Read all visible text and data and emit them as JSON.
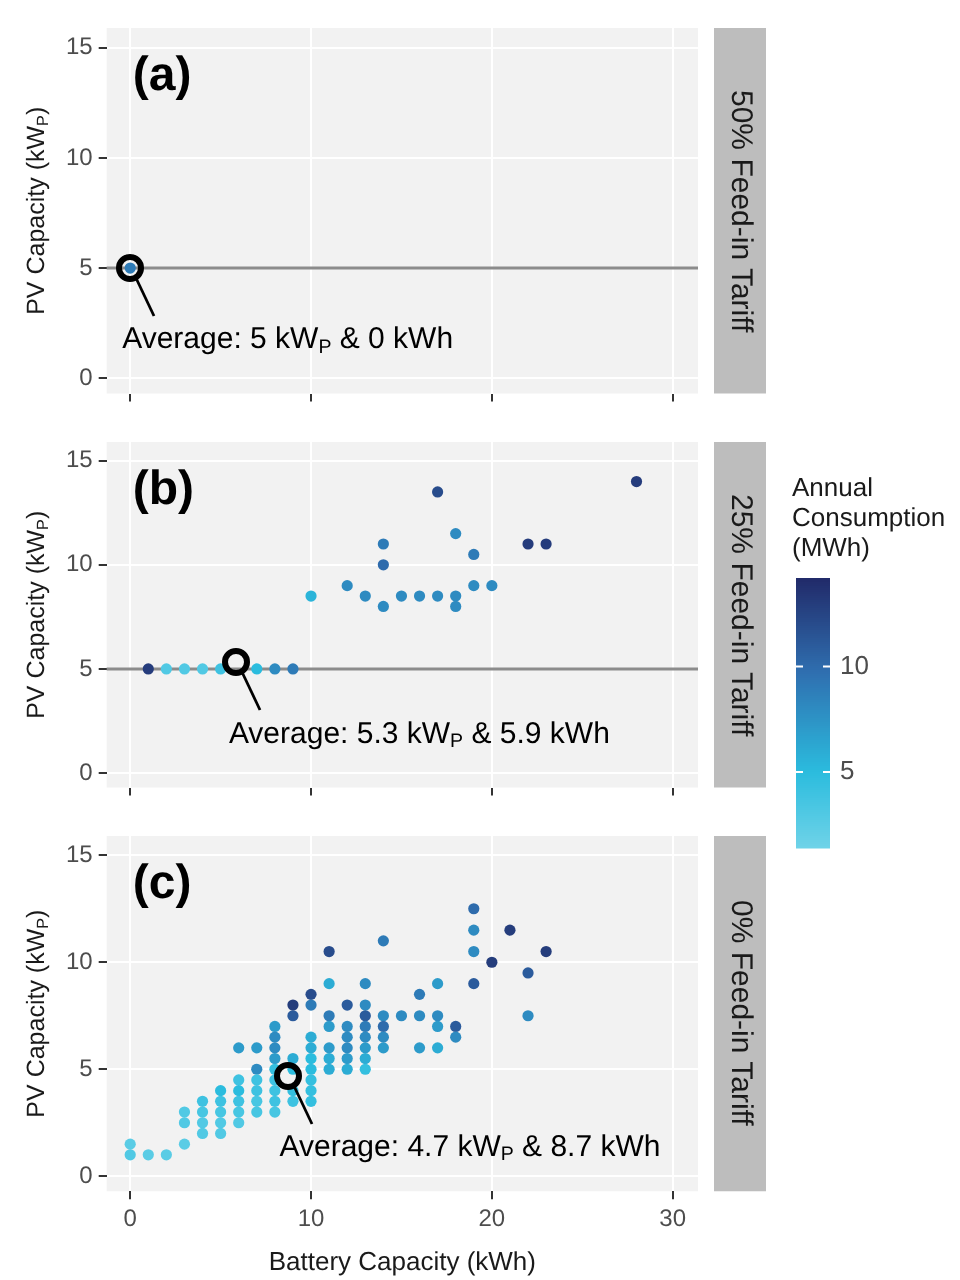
{
  "chart_data": [
    {
      "type": "scatter",
      "title": "(a)",
      "y2label": "50% Feed-in Tariff",
      "ylabel": "PV Capacity (kW$_{P}$)",
      "xlim": [
        -1.3,
        31.4
      ],
      "ylim": [
        -0.7,
        15.9
      ],
      "xticks": [
        0,
        10,
        20,
        30
      ],
      "yticks": [
        0,
        5,
        10,
        15
      ],
      "tick_labels": "y",
      "grid": true,
      "legend": false,
      "marker": "circle",
      "series": [
        {
          "x": [
            0
          ],
          "values": [
            5
          ],
          "colors": [
            "#2e7bb7"
          ]
        }
      ],
      "ref_lines": [
        {
          "axis": "y",
          "value": 5,
          "color": "#8c8c8c"
        }
      ],
      "annotations": [
        {
          "text": "Average: 5 kW$_{P}$ & 0 kWh",
          "x": 0,
          "y": 5
        }
      ]
    },
    {
      "type": "scatter",
      "title": "(b)",
      "y2label": "25% Feed-in Tariff",
      "ylabel": "PV Capacity (kW$_{P}$)",
      "xlim": [
        -1.3,
        31.4
      ],
      "ylim": [
        -0.7,
        15.9
      ],
      "xticks": [
        0,
        10,
        20,
        30
      ],
      "yticks": [
        0,
        5,
        10,
        15
      ],
      "tick_labels": "y",
      "grid": true,
      "legend": false,
      "marker": "circle",
      "clabel": "Annual Consumption (MWh)",
      "clim": [
        1.4,
        14.2
      ],
      "cticks": [
        5,
        10
      ],
      "series": [
        {
          "x": [
            1,
            2,
            3,
            4,
            5,
            6,
            7,
            8,
            9,
            10,
            12,
            13,
            14,
            14,
            14,
            15,
            16,
            17,
            17,
            18,
            18,
            18,
            19,
            19,
            20,
            22,
            23,
            28
          ],
          "values": [
            5,
            5,
            5,
            5,
            5,
            null,
            5,
            5,
            5,
            8.5,
            9,
            8.5,
            11,
            10,
            8,
            8.5,
            8.5,
            13.5,
            8.5,
            11.5,
            8.5,
            8,
            10.5,
            9,
            9,
            11,
            11,
            14
          ],
          "cvalues": [
            13,
            3,
            3,
            3,
            4,
            null,
            5,
            8,
            9,
            5.5,
            8,
            8,
            9,
            10,
            8,
            8,
            8,
            12,
            8,
            8,
            8,
            8,
            9,
            8,
            8,
            13,
            13,
            13
          ]
        }
      ],
      "ref_lines": [
        {
          "axis": "y",
          "value": 5,
          "color": "#8c8c8c"
        }
      ],
      "annotations": [
        {
          "text": "Average: 5.3 kW$_{P}$ & 5.9 kWh",
          "x": 5.9,
          "y": 5.3
        }
      ]
    },
    {
      "type": "scatter",
      "title": "(c)",
      "y2label": "0% Feed-in Tariff",
      "xlabel": "Battery Capacity (kWh)",
      "ylabel": "PV Capacity (kW$_{P}$)",
      "xlim": [
        -1.3,
        31.4
      ],
      "ylim": [
        -0.7,
        15.9
      ],
      "xticks": [
        0,
        10,
        20,
        30
      ],
      "yticks": [
        0,
        5,
        10,
        15
      ],
      "grid": true,
      "legend": false,
      "marker": "circle",
      "series": [
        {
          "x": [
            0,
            0,
            1,
            2,
            3,
            3,
            3,
            4,
            4,
            4,
            4,
            5,
            5,
            5,
            5,
            5,
            6,
            6,
            6,
            6,
            6,
            6,
            7,
            7,
            7,
            7,
            7,
            7,
            8,
            8,
            8,
            8,
            8,
            8,
            8,
            8,
            8,
            9,
            9,
            9,
            9,
            9,
            9,
            10,
            10,
            10,
            10,
            10,
            10,
            10,
            10,
            10,
            11,
            11,
            11,
            11,
            11,
            11,
            11,
            12,
            12,
            12,
            12,
            12,
            12,
            13,
            13,
            13,
            13,
            13,
            13,
            13,
            13,
            14,
            14,
            14,
            14,
            14,
            15,
            16,
            16,
            16,
            17,
            17,
            17,
            17,
            18,
            18,
            19,
            19,
            19,
            19,
            20,
            21,
            22,
            22,
            23
          ],
          "values": [
            1.5,
            1,
            1,
            1,
            3,
            2.5,
            1.5,
            3.5,
            3,
            2.5,
            2,
            4,
            3.5,
            3,
            2.5,
            2,
            6,
            4.5,
            4,
            3.5,
            3,
            2.5,
            6,
            5,
            4.5,
            4,
            3.5,
            3,
            7,
            6.5,
            6,
            5.5,
            5,
            4.5,
            4,
            3.5,
            3,
            8,
            7.5,
            5.5,
            5,
            4,
            3.5,
            8.5,
            8,
            6.5,
            6,
            5.5,
            5,
            4.5,
            4,
            3.5,
            10.5,
            9,
            7.5,
            7,
            6,
            5.5,
            5,
            8,
            7,
            6.5,
            6,
            5.5,
            5,
            9,
            8,
            7.5,
            7,
            6.5,
            6,
            5.5,
            5,
            11,
            7.5,
            7,
            6.5,
            6,
            7.5,
            8.5,
            7.5,
            6,
            9,
            7.5,
            7,
            6,
            7,
            6.5,
            12.5,
            11.5,
            10.5,
            9,
            10,
            11.5,
            9.5,
            7.5,
            10.5
          ],
          "colors": [
            "#5acce5",
            "#51c9e4",
            "#5acce5",
            "#5acce5",
            "#51c9e4",
            "#51c9e4",
            "#5acce5",
            "#3ec2e1",
            "#47c6e2",
            "#51c9e4",
            "#51c9e4",
            "#2bbcde",
            "#3ec2e1",
            "#47c6e2",
            "#51c9e4",
            "#51c9e4",
            "#2d9bca",
            "#3ec2e1",
            "#2bbcde",
            "#3ec2e1",
            "#47c6e2",
            "#51c9e4",
            "#2d9bca",
            "#2e8bc1",
            "#3ec2e1",
            "#3ec2e1",
            "#47c6e2",
            "#47c6e2",
            "#2d9bca",
            "#2e8bc1",
            "#2e8bc1",
            "#2d9bca",
            "#34bfdf",
            "#3ec2e1",
            "#3ec2e1",
            "#3ec2e1",
            "#47c6e2",
            "#253d7c",
            "#2b5b9c",
            "#2cacd4",
            "#2bbcde",
            "#34bfdf",
            "#3ec2e1",
            "#284c8c",
            "#2e7bb7",
            "#2cacd4",
            "#2cacd4",
            "#2bbcde",
            "#2bbcde",
            "#34bfdf",
            "#34bfdf",
            "#34bfdf",
            "#284c8c",
            "#2cacd4",
            "#2e7bb7",
            "#2d9bca",
            "#2d9bca",
            "#2cacd4",
            "#2cacd4",
            "#2b5b9c",
            "#2e8bc1",
            "#2e8bc1",
            "#2e8bc1",
            "#2d9bca",
            "#2cacd4",
            "#2e8bc1",
            "#2e8bc1",
            "#2b5b9c",
            "#2e7bb7",
            "#2e8bc1",
            "#2d9bca",
            "#2cacd4",
            "#34bfdf",
            "#2e7bb7",
            "#2e8bc1",
            "#2e6bac",
            "#2e8bc1",
            "#2d9bca",
            "#2e8bc1",
            "#2e7bb7",
            "#2e8bc1",
            "#2d9bca",
            "#2d9bca",
            "#2e8bc1",
            "#2d9bca",
            "#2cacd4",
            "#2b5b9c",
            "#2e8bc1",
            "#2e6bac",
            "#2e8bc1",
            "#2e8bc1",
            "#2b5b9c",
            "#253d7c",
            "#253d7c",
            "#2b5b9c",
            "#2e8bc1",
            "#253d7c"
          ]
        }
      ],
      "annotations": [
        {
          "text": "Average: 4.7 kW$_{P}$ & 8.7 kWh",
          "x": 8.7,
          "y": 4.7
        }
      ]
    }
  ]
}
